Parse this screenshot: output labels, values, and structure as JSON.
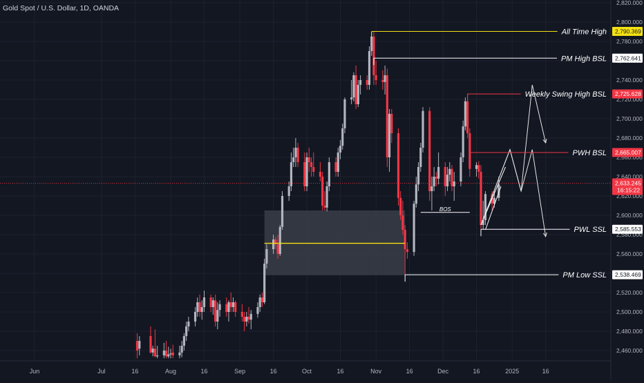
{
  "header": {
    "symbol_title": "Gold Spot / U.S. Dollar, 1D, OANDA"
  },
  "colors": {
    "background": "#131722",
    "bull": "#b2b5be",
    "bear": "#f23645",
    "grid": "#1e222d",
    "text": "#d1d4dc",
    "yellow": "#f5e211",
    "white": "#ffffff",
    "zone": "#3a3d46",
    "price_line": "#f23645"
  },
  "chart_data": {
    "type": "candlestick",
    "title": "Gold Spot / U.S. Dollar, 1D, OANDA",
    "ylim": [
      2452,
      2825
    ],
    "y_ticks": [
      "2,460.000",
      "2,480.000",
      "2,500.000",
      "2,520.000",
      "2,540.000",
      "2,560.000",
      "2,580.000",
      "2,600.000",
      "2,620.000",
      "2,640.000",
      "2,660.000",
      "2,680.000",
      "2,700.000",
      "2,720.000",
      "2,740.000",
      "2,760.000",
      "2,780.000",
      "2,800.000",
      "2,820.000"
    ],
    "x_ticks": [
      {
        "label": "Jun",
        "x": "2024-06-01"
      },
      {
        "label": "Jul",
        "x": "2024-07-01"
      },
      {
        "label": "16",
        "x": "2024-07-16"
      },
      {
        "label": "Aug",
        "x": "2024-08-01"
      },
      {
        "label": "16",
        "x": "2024-08-16"
      },
      {
        "label": "Sep",
        "x": "2024-09-01"
      },
      {
        "label": "16",
        "x": "2024-09-16"
      },
      {
        "label": "Oct",
        "x": "2024-10-01"
      },
      {
        "label": "16",
        "x": "2024-10-16"
      },
      {
        "label": "Nov",
        "x": "2024-11-01"
      },
      {
        "label": "16",
        "x": "2024-11-16"
      },
      {
        "label": "Dec",
        "x": "2024-12-01"
      },
      {
        "label": "16",
        "x": "2024-12-16"
      },
      {
        "label": "2025",
        "x": "2025-01-01"
      },
      {
        "label": "16",
        "x": "2025-01-16"
      }
    ],
    "candles": [
      {
        "d": "2024-07-17",
        "o": 2470,
        "h": 2478,
        "l": 2452,
        "c": 2460
      },
      {
        "d": "2024-07-18",
        "o": 2462,
        "h": 2475,
        "l": 2455,
        "c": 2470
      },
      {
        "d": "2024-07-23",
        "o": 2475,
        "h": 2485,
        "l": 2457,
        "c": 2458
      },
      {
        "d": "2024-07-24",
        "o": 2458,
        "h": 2465,
        "l": 2454,
        "c": 2462
      },
      {
        "d": "2024-07-25",
        "o": 2462,
        "h": 2482,
        "l": 2453,
        "c": 2454
      },
      {
        "d": "2024-07-26",
        "o": 2454,
        "h": 2465,
        "l": 2452,
        "c": 2455
      },
      {
        "d": "2024-07-29",
        "o": 2455,
        "h": 2468,
        "l": 2452,
        "c": 2460
      },
      {
        "d": "2024-07-30",
        "o": 2460,
        "h": 2470,
        "l": 2452,
        "c": 2454
      },
      {
        "d": "2024-07-31",
        "o": 2454,
        "h": 2464,
        "l": 2452,
        "c": 2456
      },
      {
        "d": "2024-08-01",
        "o": 2456,
        "h": 2462,
        "l": 2452,
        "c": 2457
      },
      {
        "d": "2024-08-02",
        "o": 2458,
        "h": 2466,
        "l": 2452,
        "c": 2455
      },
      {
        "d": "2024-08-05",
        "o": 2455,
        "h": 2465,
        "l": 2452,
        "c": 2458
      },
      {
        "d": "2024-08-06",
        "o": 2458,
        "h": 2470,
        "l": 2453,
        "c": 2465
      },
      {
        "d": "2024-08-07",
        "o": 2465,
        "h": 2478,
        "l": 2460,
        "c": 2475
      },
      {
        "d": "2024-08-08",
        "o": 2475,
        "h": 2490,
        "l": 2470,
        "c": 2485
      },
      {
        "d": "2024-08-09",
        "o": 2485,
        "h": 2495,
        "l": 2480,
        "c": 2490
      },
      {
        "d": "2024-08-12",
        "o": 2490,
        "h": 2505,
        "l": 2485,
        "c": 2500
      },
      {
        "d": "2024-08-13",
        "o": 2500,
        "h": 2515,
        "l": 2495,
        "c": 2510
      },
      {
        "d": "2024-08-14",
        "o": 2510,
        "h": 2518,
        "l": 2495,
        "c": 2500
      },
      {
        "d": "2024-08-15",
        "o": 2500,
        "h": 2512,
        "l": 2492,
        "c": 2505
      },
      {
        "d": "2024-08-16",
        "o": 2505,
        "h": 2522,
        "l": 2500,
        "c": 2515
      },
      {
        "d": "2024-08-19",
        "o": 2515,
        "h": 2518,
        "l": 2500,
        "c": 2505
      },
      {
        "d": "2024-08-20",
        "o": 2505,
        "h": 2515,
        "l": 2497,
        "c": 2512
      },
      {
        "d": "2024-08-21",
        "o": 2512,
        "h": 2518,
        "l": 2485,
        "c": 2490
      },
      {
        "d": "2024-08-22",
        "o": 2490,
        "h": 2510,
        "l": 2482,
        "c": 2502
      },
      {
        "d": "2024-08-23",
        "o": 2502,
        "h": 2512,
        "l": 2495,
        "c": 2508
      },
      {
        "d": "2024-08-26",
        "o": 2508,
        "h": 2515,
        "l": 2495,
        "c": 2500
      },
      {
        "d": "2024-08-27",
        "o": 2500,
        "h": 2512,
        "l": 2490,
        "c": 2510
      },
      {
        "d": "2024-08-28",
        "o": 2510,
        "h": 2520,
        "l": 2500,
        "c": 2505
      },
      {
        "d": "2024-08-29",
        "o": 2505,
        "h": 2515,
        "l": 2500,
        "c": 2510
      },
      {
        "d": "2024-08-30",
        "o": 2510,
        "h": 2512,
        "l": 2495,
        "c": 2500
      },
      {
        "d": "2024-09-02",
        "o": 2500,
        "h": 2508,
        "l": 2490,
        "c": 2495
      },
      {
        "d": "2024-09-03",
        "o": 2495,
        "h": 2500,
        "l": 2480,
        "c": 2490
      },
      {
        "d": "2024-09-04",
        "o": 2490,
        "h": 2500,
        "l": 2485,
        "c": 2495
      },
      {
        "d": "2024-09-05",
        "o": 2495,
        "h": 2505,
        "l": 2488,
        "c": 2492
      },
      {
        "d": "2024-09-06",
        "o": 2492,
        "h": 2502,
        "l": 2482,
        "c": 2498
      },
      {
        "d": "2024-09-09",
        "o": 2498,
        "h": 2510,
        "l": 2494,
        "c": 2505
      },
      {
        "d": "2024-09-10",
        "o": 2505,
        "h": 2518,
        "l": 2500,
        "c": 2515
      },
      {
        "d": "2024-09-11",
        "o": 2515,
        "h": 2520,
        "l": 2505,
        "c": 2510
      },
      {
        "d": "2024-09-12",
        "o": 2510,
        "h": 2555,
        "l": 2508,
        "c": 2550
      },
      {
        "d": "2024-09-13",
        "o": 2550,
        "h": 2570,
        "l": 2545,
        "c": 2565
      },
      {
        "d": "2024-09-16",
        "o": 2565,
        "h": 2580,
        "l": 2560,
        "c": 2575
      },
      {
        "d": "2024-09-17",
        "o": 2575,
        "h": 2578,
        "l": 2565,
        "c": 2570
      },
      {
        "d": "2024-09-18",
        "o": 2570,
        "h": 2580,
        "l": 2555,
        "c": 2560
      },
      {
        "d": "2024-09-19",
        "o": 2560,
        "h": 2590,
        "l": 2558,
        "c": 2588
      },
      {
        "d": "2024-09-20",
        "o": 2588,
        "h": 2625,
        "l": 2585,
        "c": 2620
      },
      {
        "d": "2024-09-23",
        "o": 2620,
        "h": 2635,
        "l": 2615,
        "c": 2630
      },
      {
        "d": "2024-09-24",
        "o": 2630,
        "h": 2665,
        "l": 2625,
        "c": 2655
      },
      {
        "d": "2024-09-25",
        "o": 2655,
        "h": 2670,
        "l": 2650,
        "c": 2660
      },
      {
        "d": "2024-09-26",
        "o": 2660,
        "h": 2680,
        "l": 2650,
        "c": 2670
      },
      {
        "d": "2024-09-27",
        "o": 2670,
        "h": 2675,
        "l": 2650,
        "c": 2655
      },
      {
        "d": "2024-09-30",
        "o": 2655,
        "h": 2665,
        "l": 2625,
        "c": 2630
      },
      {
        "d": "2024-10-01",
        "o": 2630,
        "h": 2665,
        "l": 2625,
        "c": 2660
      },
      {
        "d": "2024-10-02",
        "o": 2660,
        "h": 2670,
        "l": 2645,
        "c": 2655
      },
      {
        "d": "2024-10-03",
        "o": 2655,
        "h": 2660,
        "l": 2640,
        "c": 2650
      },
      {
        "d": "2024-10-04",
        "o": 2650,
        "h": 2665,
        "l": 2640,
        "c": 2645
      },
      {
        "d": "2024-10-07",
        "o": 2645,
        "h": 2655,
        "l": 2635,
        "c": 2640
      },
      {
        "d": "2024-10-08",
        "o": 2640,
        "h": 2645,
        "l": 2605,
        "c": 2610
      },
      {
        "d": "2024-10-09",
        "o": 2610,
        "h": 2625,
        "l": 2605,
        "c": 2608
      },
      {
        "d": "2024-10-10",
        "o": 2608,
        "h": 2635,
        "l": 2604,
        "c": 2630
      },
      {
        "d": "2024-10-11",
        "o": 2630,
        "h": 2660,
        "l": 2625,
        "c": 2655
      },
      {
        "d": "2024-10-14",
        "o": 2655,
        "h": 2660,
        "l": 2640,
        "c": 2645
      },
      {
        "d": "2024-10-15",
        "o": 2645,
        "h": 2670,
        "l": 2640,
        "c": 2665
      },
      {
        "d": "2024-10-16",
        "o": 2665,
        "h": 2678,
        "l": 2658,
        "c": 2672
      },
      {
        "d": "2024-10-17",
        "o": 2672,
        "h": 2695,
        "l": 2668,
        "c": 2690
      },
      {
        "d": "2024-10-18",
        "o": 2690,
        "h": 2722,
        "l": 2685,
        "c": 2720
      },
      {
        "d": "2024-10-21",
        "o": 2720,
        "h": 2740,
        "l": 2715,
        "c": 2722
      },
      {
        "d": "2024-10-22",
        "o": 2722,
        "h": 2748,
        "l": 2718,
        "c": 2745
      },
      {
        "d": "2024-10-23",
        "o": 2745,
        "h": 2755,
        "l": 2710,
        "c": 2715
      },
      {
        "d": "2024-10-24",
        "o": 2715,
        "h": 2740,
        "l": 2712,
        "c": 2735
      },
      {
        "d": "2024-10-25",
        "o": 2735,
        "h": 2745,
        "l": 2725,
        "c": 2740
      },
      {
        "d": "2024-10-28",
        "o": 2740,
        "h": 2745,
        "l": 2730,
        "c": 2735
      },
      {
        "d": "2024-10-29",
        "o": 2735,
        "h": 2775,
        "l": 2730,
        "c": 2770
      },
      {
        "d": "2024-10-30",
        "o": 2770,
        "h": 2790,
        "l": 2765,
        "c": 2785
      },
      {
        "d": "2024-10-31",
        "o": 2785,
        "h": 2790,
        "l": 2735,
        "c": 2745
      },
      {
        "d": "2024-11-01",
        "o": 2745,
        "h": 2760,
        "l": 2735,
        "c": 2740
      },
      {
        "d": "2024-11-04",
        "o": 2740,
        "h": 2750,
        "l": 2730,
        "c": 2738
      },
      {
        "d": "2024-11-05",
        "o": 2738,
        "h": 2755,
        "l": 2725,
        "c": 2745
      },
      {
        "d": "2024-11-06",
        "o": 2745,
        "h": 2752,
        "l": 2650,
        "c": 2660
      },
      {
        "d": "2024-11-07",
        "o": 2660,
        "h": 2710,
        "l": 2645,
        "c": 2705
      },
      {
        "d": "2024-11-08",
        "o": 2705,
        "h": 2710,
        "l": 2675,
        "c": 2685
      },
      {
        "d": "2024-11-11",
        "o": 2685,
        "h": 2690,
        "l": 2610,
        "c": 2618
      },
      {
        "d": "2024-11-12",
        "o": 2618,
        "h": 2625,
        "l": 2595,
        "c": 2600
      },
      {
        "d": "2024-11-13",
        "o": 2600,
        "h": 2615,
        "l": 2580,
        "c": 2585
      },
      {
        "d": "2024-11-14",
        "o": 2585,
        "h": 2590,
        "l": 2538,
        "c": 2565
      },
      {
        "d": "2024-11-15",
        "o": 2565,
        "h": 2572,
        "l": 2555,
        "c": 2562
      },
      {
        "d": "2024-11-18",
        "o": 2562,
        "h": 2615,
        "l": 2558,
        "c": 2612
      },
      {
        "d": "2024-11-19",
        "o": 2612,
        "h": 2640,
        "l": 2608,
        "c": 2632
      },
      {
        "d": "2024-11-20",
        "o": 2632,
        "h": 2655,
        "l": 2625,
        "c": 2650
      },
      {
        "d": "2024-11-21",
        "o": 2650,
        "h": 2675,
        "l": 2645,
        "c": 2670
      },
      {
        "d": "2024-11-22",
        "o": 2670,
        "h": 2712,
        "l": 2665,
        "c": 2708
      },
      {
        "d": "2024-11-25",
        "o": 2708,
        "h": 2712,
        "l": 2615,
        "c": 2625
      },
      {
        "d": "2024-11-26",
        "o": 2625,
        "h": 2640,
        "l": 2605,
        "c": 2630
      },
      {
        "d": "2024-11-27",
        "o": 2630,
        "h": 2650,
        "l": 2625,
        "c": 2640
      },
      {
        "d": "2024-11-28",
        "o": 2640,
        "h": 2645,
        "l": 2630,
        "c": 2638
      },
      {
        "d": "2024-11-29",
        "o": 2638,
        "h": 2665,
        "l": 2632,
        "c": 2650
      },
      {
        "d": "2024-12-02",
        "o": 2650,
        "h": 2655,
        "l": 2620,
        "c": 2630
      },
      {
        "d": "2024-12-03",
        "o": 2630,
        "h": 2650,
        "l": 2625,
        "c": 2642
      },
      {
        "d": "2024-12-04",
        "o": 2642,
        "h": 2655,
        "l": 2635,
        "c": 2648
      },
      {
        "d": "2024-12-05",
        "o": 2648,
        "h": 2652,
        "l": 2625,
        "c": 2630
      },
      {
        "d": "2024-12-06",
        "o": 2630,
        "h": 2645,
        "l": 2615,
        "c": 2635
      },
      {
        "d": "2024-12-09",
        "o": 2635,
        "h": 2665,
        "l": 2630,
        "c": 2660
      },
      {
        "d": "2024-12-10",
        "o": 2660,
        "h": 2698,
        "l": 2655,
        "c": 2692
      },
      {
        "d": "2024-12-11",
        "o": 2692,
        "h": 2722,
        "l": 2688,
        "c": 2718
      },
      {
        "d": "2024-12-12",
        "o": 2718,
        "h": 2726,
        "l": 2680,
        "c": 2685
      },
      {
        "d": "2024-12-13",
        "o": 2685,
        "h": 2690,
        "l": 2640,
        "c": 2648
      },
      {
        "d": "2024-12-16",
        "o": 2648,
        "h": 2655,
        "l": 2640,
        "c": 2652
      },
      {
        "d": "2024-12-17",
        "o": 2652,
        "h": 2656,
        "l": 2638,
        "c": 2645
      },
      {
        "d": "2024-12-18",
        "o": 2645,
        "h": 2652,
        "l": 2585,
        "c": 2590
      },
      {
        "d": "2024-12-19",
        "o": 2590,
        "h": 2615,
        "l": 2585,
        "c": 2595
      },
      {
        "d": "2024-12-20",
        "o": 2595,
        "h": 2625,
        "l": 2590,
        "c": 2622
      },
      {
        "d": "2024-12-23",
        "o": 2622,
        "h": 2625,
        "l": 2605,
        "c": 2612
      },
      {
        "d": "2024-12-24",
        "o": 2612,
        "h": 2625,
        "l": 2608,
        "c": 2618
      },
      {
        "d": "2024-12-26",
        "o": 2618,
        "h": 2640,
        "l": 2615,
        "c": 2632
      }
    ],
    "current_price": {
      "value": 2633.245,
      "label": "2,633.245",
      "countdown": "16:15:22"
    },
    "horizontal_levels": [
      {
        "name": "All Time High",
        "value": 2790.369,
        "label": "2,790.369",
        "from": "2024-10-30",
        "to": "2025-01-05",
        "color": "#f5e211",
        "badge_bg": "#f5e211",
        "badge_fg": "#131722",
        "text_color": "#ffffff"
      },
      {
        "name": "PM High BSL",
        "value": 2762.641,
        "label": "2,762.641",
        "from": "2024-10-31",
        "to": "2025-01-05",
        "color": "#ffffff",
        "badge_bg": "#ffffff",
        "badge_fg": "#131722",
        "text_color": "#ffffff"
      },
      {
        "name": "Weekly Swing High BSL",
        "value": 2725.628,
        "label": "2,725.628",
        "from": "2024-12-12",
        "to": "2024-12-26",
        "color": "#f23645",
        "badge_bg": "#f23645",
        "badge_fg": "#ffffff",
        "text_color": "#ffffff"
      },
      {
        "name": "PWH BSL",
        "value": 2665.007,
        "label": "2,665.007",
        "from": "2024-12-13",
        "to": "2025-01-05",
        "color": "#f23645",
        "badge_bg": "#f23645",
        "badge_fg": "#ffffff",
        "text_color": "#ffffff"
      },
      {
        "name": "PWL SSL",
        "value": 2585.553,
        "label": "2,585.553",
        "from": "2024-12-18",
        "to": "2025-01-05",
        "color": "#ffffff",
        "badge_bg": "#ffffff",
        "badge_fg": "#131722",
        "text_color": "#ffffff"
      },
      {
        "name": "PM Low SSL",
        "value": 2538.469,
        "label": "2,538.469",
        "from": "2024-11-14",
        "to": "2025-01-05",
        "color": "#ffffff",
        "badge_bg": "#ffffff",
        "badge_fg": "#131722",
        "text_color": "#ffffff"
      }
    ],
    "zone": {
      "from": "2024-09-12",
      "to": "2024-11-14",
      "top": 2605,
      "bottom": 2538
    },
    "zone_midline": {
      "value": 2571,
      "from": "2024-09-12",
      "to": "2024-11-14"
    },
    "bos": {
      "label": "BOS",
      "value": 2603,
      "from": "2024-11-21",
      "to": "2024-12-13"
    },
    "projection_path": [
      {
        "d": "2024-12-18",
        "v": 2590
      },
      {
        "d": "2024-12-31",
        "v": 2668
      },
      {
        "d": "2025-01-05",
        "v": 2625
      },
      {
        "d": "2025-01-10",
        "v": 2668
      },
      {
        "d": "2025-01-16",
        "v": 2578
      }
    ],
    "projection_path_2": [
      {
        "d": "2024-12-18",
        "v": 2590
      },
      {
        "d": "2024-12-31",
        "v": 2668
      },
      {
        "d": "2025-01-05",
        "v": 2625
      },
      {
        "d": "2025-01-10",
        "v": 2735
      },
      {
        "d": "2025-01-16",
        "v": 2675
      }
    ],
    "wedge": {
      "p1": {
        "d": "2024-12-18",
        "v": 2590
      },
      "p2": {
        "d": "2024-12-29",
        "v": 2650
      },
      "p3": {
        "d": "2024-12-20",
        "v": 2585
      },
      "p4": {
        "d": "2024-12-27",
        "v": 2630
      }
    }
  }
}
